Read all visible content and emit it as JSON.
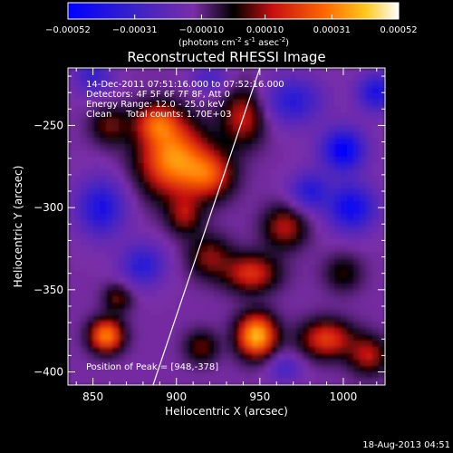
{
  "chart_data": {
    "type": "heatmap",
    "title": "Reconstructed RHESSI Image",
    "xlabel": "Heliocentric X (arcsec)",
    "ylabel": "Heliocentric Y (arcsec)",
    "xlim": [
      835,
      1025
    ],
    "ylim": [
      -408,
      -215
    ],
    "x_ticks": [
      850,
      900,
      950,
      1000
    ],
    "y_ticks": [
      -250,
      -300,
      -350,
      -400
    ],
    "colorbar": {
      "range": [
        -0.00052,
        0.00052
      ],
      "tick_values": [
        -0.00052,
        -0.00031,
        -0.0001,
        0.0001,
        0.00031,
        0.00052
      ],
      "tick_labels": [
        "-0.00052",
        "-0.00031",
        "-0.00010",
        "0.00010",
        "0.00031",
        "0.00052"
      ],
      "unit_label": "(photons cm",
      "unit_exp1": "-2",
      "unit_mid": " s",
      "unit_exp2": "-1",
      "unit_mid2": " asec",
      "unit_exp3": "-2",
      "unit_end": ")"
    },
    "annotations": {
      "time_range": "14-Dec-2011 07:51:16.000 to 07:52:16.000",
      "detectors": "Detectors: 4F 5F 6F 7F 8F, Att 0",
      "energy": "Energy Range: 12.0 - 25.0 keV",
      "clean": "Clean     Total counts: 1.70E+03",
      "peak": "Position of Peak = [948,-378]"
    },
    "limb_line": [
      [
        886,
        -408
      ],
      [
        950,
        -215
      ]
    ],
    "sources": [
      {
        "x": 898,
        "y": -270,
        "amp": 0.00046,
        "sx": 14,
        "sy": 16
      },
      {
        "x": 920,
        "y": -280,
        "amp": 0.0003,
        "sx": 10,
        "sy": 10
      },
      {
        "x": 888,
        "y": -248,
        "amp": 0.00028,
        "sx": 9,
        "sy": 8
      },
      {
        "x": 940,
        "y": -245,
        "amp": 0.00026,
        "sx": 9,
        "sy": 12
      },
      {
        "x": 860,
        "y": -250,
        "amp": 0.00018,
        "sx": 8,
        "sy": 8
      },
      {
        "x": 905,
        "y": -305,
        "amp": 0.0002,
        "sx": 7,
        "sy": 8
      },
      {
        "x": 948,
        "y": -378,
        "amp": 0.00052,
        "sx": 8,
        "sy": 9
      },
      {
        "x": 945,
        "y": -340,
        "amp": 0.0003,
        "sx": 11,
        "sy": 8
      },
      {
        "x": 965,
        "y": -312,
        "amp": 0.00024,
        "sx": 9,
        "sy": 9
      },
      {
        "x": 920,
        "y": -330,
        "amp": 0.0002,
        "sx": 9,
        "sy": 9
      },
      {
        "x": 858,
        "y": -378,
        "amp": 0.00044,
        "sx": 7,
        "sy": 7
      },
      {
        "x": 865,
        "y": -355,
        "amp": 0.00018,
        "sx": 6,
        "sy": 6
      },
      {
        "x": 990,
        "y": -380,
        "amp": 0.00032,
        "sx": 11,
        "sy": 8
      },
      {
        "x": 1015,
        "y": -390,
        "amp": 0.00024,
        "sx": 8,
        "sy": 8
      },
      {
        "x": 1000,
        "y": -340,
        "amp": 0.00014,
        "sx": 8,
        "sy": 8
      },
      {
        "x": 915,
        "y": -385,
        "amp": 0.00018,
        "sx": 7,
        "sy": 7
      },
      {
        "x": 970,
        "y": -235,
        "amp": -0.00025,
        "sx": 12,
        "sy": 10
      },
      {
        "x": 1000,
        "y": -265,
        "amp": -0.0004,
        "sx": 9,
        "sy": 9
      },
      {
        "x": 1005,
        "y": -300,
        "amp": -0.00035,
        "sx": 10,
        "sy": 10
      },
      {
        "x": 980,
        "y": -290,
        "amp": -0.00025,
        "sx": 8,
        "sy": 8
      },
      {
        "x": 855,
        "y": -300,
        "amp": -0.0003,
        "sx": 10,
        "sy": 12
      },
      {
        "x": 880,
        "y": -335,
        "amp": -0.00025,
        "sx": 9,
        "sy": 9
      },
      {
        "x": 850,
        "y": -220,
        "amp": -0.0002,
        "sx": 8,
        "sy": 8
      },
      {
        "x": 920,
        "y": -222,
        "amp": -0.00016,
        "sx": 8,
        "sy": 6
      },
      {
        "x": 1020,
        "y": -230,
        "amp": -0.0003,
        "sx": 8,
        "sy": 8
      },
      {
        "x": 965,
        "y": -398,
        "amp": -0.00016,
        "sx": 7,
        "sy": 6
      }
    ]
  },
  "footer": {
    "date": "18-Aug-2013 04:51"
  }
}
